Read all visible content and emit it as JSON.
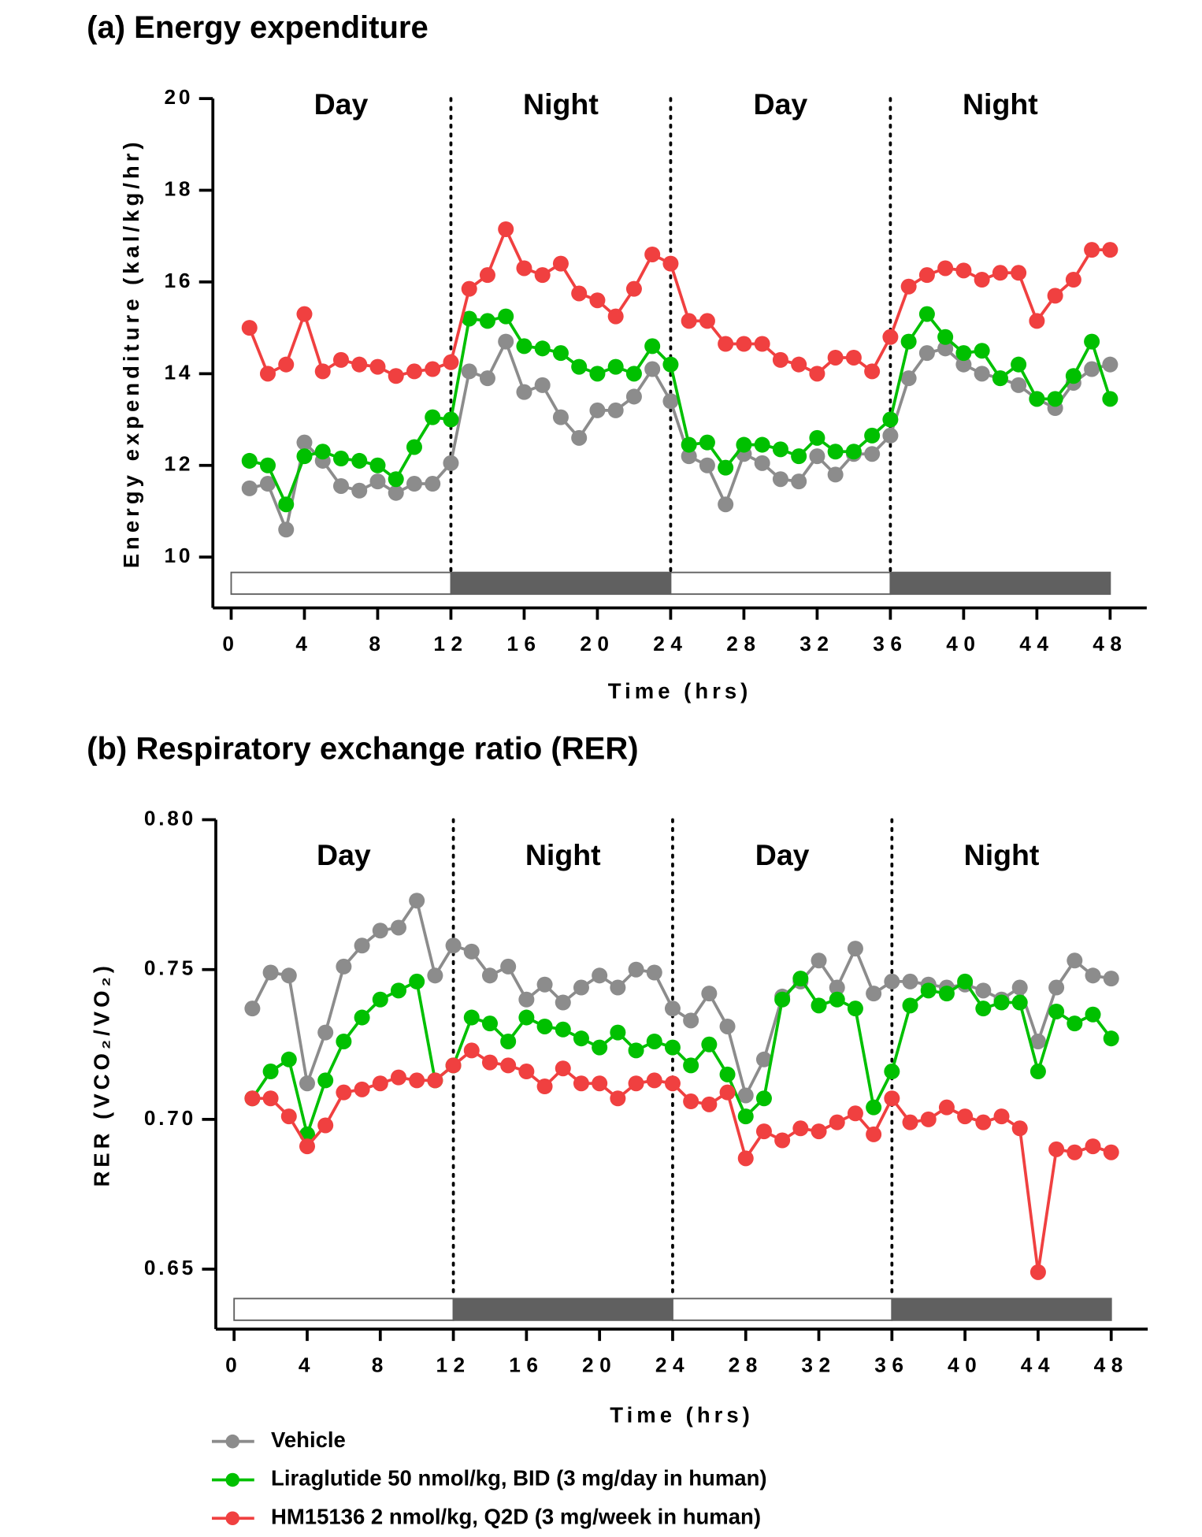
{
  "chart_data": [
    {
      "type": "line",
      "title": "(a) Energy expenditure",
      "y_label": "Energy expenditure  (kal/kg/hr)",
      "x_label": "Time (hrs)",
      "x": [
        1,
        2,
        3,
        4,
        5,
        6,
        7,
        8,
        9,
        10,
        11,
        12,
        13,
        14,
        15,
        16,
        17,
        18,
        19,
        20,
        21,
        22,
        23,
        24,
        25,
        26,
        27,
        28,
        29,
        30,
        31,
        32,
        33,
        34,
        35,
        36,
        37,
        38,
        39,
        40,
        41,
        42,
        43,
        44,
        45,
        46,
        47,
        48
      ],
      "xlim": [
        -1,
        50
      ],
      "xticks": [
        0,
        4,
        8,
        12,
        16,
        20,
        24,
        28,
        32,
        36,
        40,
        44,
        48
      ],
      "ylim": [
        9,
        20
      ],
      "yticks": [
        10,
        12,
        14,
        16,
        18,
        20
      ],
      "dividers": [
        12,
        24,
        36
      ],
      "periods": [
        {
          "label": "Day",
          "start": 0,
          "end": 12,
          "color": "#ffffff"
        },
        {
          "label": "Night",
          "start": 12,
          "end": 24,
          "color": "#606060"
        },
        {
          "label": "Day",
          "start": 24,
          "end": 36,
          "color": "#ffffff"
        },
        {
          "label": "Night",
          "start": 36,
          "end": 48,
          "color": "#606060"
        }
      ],
      "series": [
        {
          "color": "#8c8c8c",
          "values": [
            11.5,
            11.6,
            10.6,
            12.5,
            12.1,
            11.55,
            11.45,
            11.65,
            11.4,
            11.6,
            11.6,
            12.05,
            14.05,
            13.9,
            14.7,
            13.6,
            13.75,
            13.05,
            12.6,
            13.2,
            13.2,
            13.5,
            14.1,
            13.4,
            12.2,
            12.0,
            11.15,
            12.25,
            12.05,
            11.7,
            11.65,
            12.2,
            11.8,
            12.25,
            12.25,
            12.65,
            13.9,
            14.45,
            14.55,
            14.2,
            14.0,
            13.9,
            13.75,
            13.45,
            13.25,
            13.8,
            14.1,
            14.2
          ]
        },
        {
          "color": "#00c000",
          "values": [
            12.1,
            12.0,
            11.15,
            12.2,
            12.3,
            12.15,
            12.1,
            12.0,
            11.7,
            12.4,
            13.05,
            13.0,
            15.2,
            15.15,
            15.25,
            14.6,
            14.55,
            14.45,
            14.15,
            14.0,
            14.15,
            14.0,
            14.6,
            14.2,
            12.45,
            12.5,
            11.95,
            12.45,
            12.45,
            12.35,
            12.2,
            12.6,
            12.3,
            12.3,
            12.65,
            13.0,
            14.7,
            15.3,
            14.8,
            14.45,
            14.5,
            13.9,
            14.2,
            13.45,
            13.45,
            13.95,
            14.7,
            13.45
          ]
        },
        {
          "color": "#f04040",
          "values": [
            15.0,
            14.0,
            14.2,
            15.3,
            14.05,
            14.3,
            14.2,
            14.15,
            13.95,
            14.05,
            14.1,
            14.25,
            15.85,
            16.15,
            17.15,
            16.3,
            16.15,
            16.4,
            15.75,
            15.6,
            15.25,
            15.85,
            16.6,
            16.4,
            15.15,
            15.15,
            14.65,
            14.65,
            14.65,
            14.3,
            14.2,
            14.0,
            14.35,
            14.35,
            14.05,
            14.8,
            15.9,
            16.15,
            16.3,
            16.25,
            16.05,
            16.2,
            16.2,
            15.15,
            15.7,
            16.05,
            16.7,
            16.7
          ]
        }
      ]
    },
    {
      "type": "line",
      "title": "(b) Respiratory exchange ratio (RER)",
      "y_label": "RER (VCO₂/VO₂)",
      "x_label": "Time (hrs)",
      "x": [
        1,
        2,
        3,
        4,
        5,
        6,
        7,
        8,
        9,
        10,
        11,
        12,
        13,
        14,
        15,
        16,
        17,
        18,
        19,
        20,
        21,
        22,
        23,
        24,
        25,
        26,
        27,
        28,
        29,
        30,
        31,
        32,
        33,
        34,
        35,
        36,
        37,
        38,
        39,
        40,
        41,
        42,
        43,
        44,
        45,
        46,
        47,
        48
      ],
      "xlim": [
        -1,
        50
      ],
      "xticks": [
        0,
        4,
        8,
        12,
        16,
        20,
        24,
        28,
        32,
        36,
        40,
        44,
        48
      ],
      "ylim": [
        0.63,
        0.8
      ],
      "yticks": [
        0.65,
        {
          "value": 0.7,
          "label": "0.70"
        },
        0.75,
        {
          "value": 0.8,
          "label": "0.80"
        }
      ],
      "dividers": [
        12,
        24,
        36
      ],
      "periods": [
        {
          "label": "Day",
          "start": 0,
          "end": 12,
          "color": "#ffffff"
        },
        {
          "label": "Night",
          "start": 12,
          "end": 24,
          "color": "#606060"
        },
        {
          "label": "Day",
          "start": 24,
          "end": 36,
          "color": "#ffffff"
        },
        {
          "label": "Night",
          "start": 36,
          "end": 48,
          "color": "#606060"
        }
      ],
      "series": [
        {
          "name": "Vehicle",
          "color": "#8c8c8c",
          "values": [
            0.737,
            0.749,
            0.748,
            0.712,
            0.729,
            0.751,
            0.758,
            0.763,
            0.764,
            0.773,
            0.748,
            0.758,
            0.756,
            0.748,
            0.751,
            0.74,
            0.745,
            0.739,
            0.744,
            0.748,
            0.744,
            0.75,
            0.749,
            0.737,
            0.733,
            0.742,
            0.731,
            0.708,
            0.72,
            0.741,
            0.746,
            0.753,
            0.744,
            0.757,
            0.742,
            0.746,
            0.746,
            0.745,
            0.744,
            0.745,
            0.743,
            0.74,
            0.744,
            0.726,
            0.744,
            0.753,
            0.748,
            0.747
          ]
        },
        {
          "name": "Liraglutide 50 nmol/kg, BID (3 mg/day in human)",
          "color": "#00c000",
          "values": [
            0.707,
            0.716,
            0.72,
            0.695,
            0.713,
            0.726,
            0.734,
            0.74,
            0.743,
            0.746,
            0.713,
            0.718,
            0.734,
            0.732,
            0.726,
            0.734,
            0.731,
            0.73,
            0.727,
            0.724,
            0.729,
            0.723,
            0.726,
            0.724,
            0.718,
            0.725,
            0.715,
            0.701,
            0.707,
            0.74,
            0.747,
            0.738,
            0.74,
            0.737,
            0.704,
            0.716,
            0.738,
            0.743,
            0.742,
            0.746,
            0.737,
            0.739,
            0.739,
            0.716,
            0.736,
            0.732,
            0.735,
            0.727
          ]
        },
        {
          "name": "HM15136  2 nmol/kg, Q2D (3 mg/week in human)",
          "color": "#f04040",
          "values": [
            0.707,
            0.707,
            0.701,
            0.691,
            0.698,
            0.709,
            0.71,
            0.712,
            0.714,
            0.713,
            0.713,
            0.718,
            0.723,
            0.719,
            0.718,
            0.716,
            0.711,
            0.717,
            0.712,
            0.712,
            0.707,
            0.712,
            0.713,
            0.712,
            0.706,
            0.705,
            0.709,
            0.687,
            0.696,
            0.693,
            0.697,
            0.696,
            0.699,
            0.702,
            0.695,
            0.707,
            0.699,
            0.7,
            0.704,
            0.701,
            0.699,
            0.701,
            0.697,
            0.649,
            0.69,
            0.689,
            0.691,
            0.689
          ]
        }
      ]
    }
  ]
}
